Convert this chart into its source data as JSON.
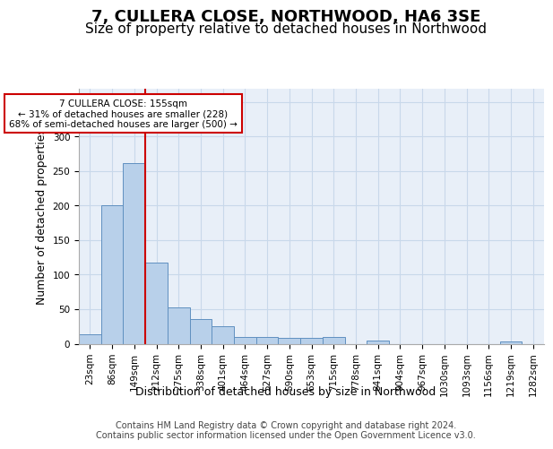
{
  "title1": "7, CULLERA CLOSE, NORTHWOOD, HA6 3SE",
  "title2": "Size of property relative to detached houses in Northwood",
  "xlabel": "Distribution of detached houses by size in Northwood",
  "ylabel": "Number of detached properties",
  "bin_labels": [
    "23sqm",
    "86sqm",
    "149sqm",
    "212sqm",
    "275sqm",
    "338sqm",
    "401sqm",
    "464sqm",
    "527sqm",
    "590sqm",
    "653sqm",
    "715sqm",
    "778sqm",
    "841sqm",
    "904sqm",
    "967sqm",
    "1030sqm",
    "1093sqm",
    "1156sqm",
    "1219sqm",
    "1282sqm"
  ],
  "bar_heights": [
    13,
    200,
    262,
    117,
    53,
    36,
    25,
    10,
    10,
    8,
    8,
    10,
    0,
    5,
    0,
    0,
    0,
    0,
    0,
    3,
    0
  ],
  "bar_color": "#b8d0ea",
  "bar_edge_color": "#6090c0",
  "ylim": [
    0,
    370
  ],
  "yticks": [
    0,
    50,
    100,
    150,
    200,
    250,
    300,
    350
  ],
  "grid_color": "#c8d8ea",
  "bg_color": "#e8eff8",
  "red_line_bin_index": 2,
  "annotation_text": "7 CULLERA CLOSE: 155sqm\n← 31% of detached houses are smaller (228)\n68% of semi-detached houses are larger (500) →",
  "footer_text": "Contains HM Land Registry data © Crown copyright and database right 2024.\nContains public sector information licensed under the Open Government Licence v3.0.",
  "title1_fontsize": 13,
  "title2_fontsize": 11,
  "axis_label_fontsize": 9,
  "tick_fontsize": 7.5,
  "footer_fontsize": 7
}
